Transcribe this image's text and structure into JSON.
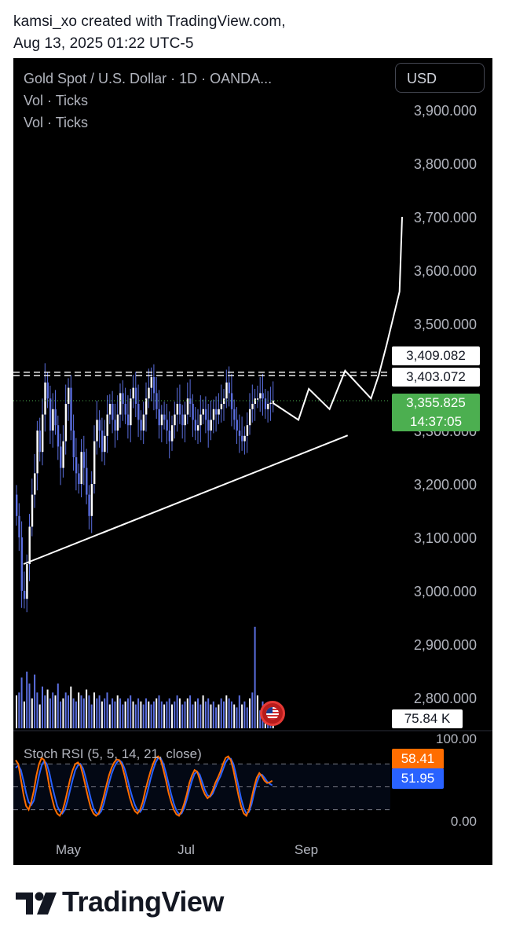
{
  "header": {
    "line1": "kamsi_xo created with TradingView.com,",
    "line2": "Aug 13, 2025 01:22 UTC-5"
  },
  "legend": {
    "symbol": "Gold Spot / U.S. Dollar · 1D · OANDA...",
    "indicator1": "Vol · Ticks",
    "indicator2": "Vol · Ticks"
  },
  "currency_button": "USD",
  "badges": {
    "level1": "3,409.082",
    "level2": "3,403.072",
    "last_price": "3,355.825",
    "countdown": "14:37:05",
    "volume": "75.84 K",
    "stoch_k": "58.41",
    "stoch_d": "51.95"
  },
  "stoch_label": "Stoch RSI (5, 5, 14, 21, close)",
  "footer": {
    "brand": "TradingView"
  },
  "colors": {
    "background": "#000000",
    "candle": "#5b6fe0",
    "price_badge": "#4caf50",
    "stoch_k": "#ff6d00",
    "stoch_d": "#2962ff",
    "drawing": "#ffffff"
  },
  "chart_data": {
    "type": "candlestick",
    "symbol": "XAUUSD",
    "timeframe": "1D",
    "price_axis": {
      "ticks": [
        "3,900.000",
        "3,800.000",
        "3,700.000",
        "3,600.000",
        "3,500.000",
        "3,200.000",
        "3,100.000",
        "3,000.000",
        "2,900.000",
        "2,800.000"
      ],
      "tick_values": [
        3900,
        3800,
        3700,
        3600,
        3500,
        3200,
        3100,
        3000,
        2900,
        2800
      ],
      "partially_hidden_tick": "3,300.000",
      "partially_hidden_tick_value": 3300
    },
    "time_axis": {
      "ticks": [
        "May",
        "Jul",
        "Sep"
      ]
    },
    "lines": {
      "level1": 3409.082,
      "level2": 3403.072,
      "last_price": 3355.825
    },
    "trendline": [
      [
        0,
        3050
      ],
      [
        119,
        3335
      ]
    ],
    "projection_path": [
      [
        90,
        3352
      ],
      [
        100,
        3320
      ],
      [
        104,
        3378
      ],
      [
        112,
        3340
      ],
      [
        118,
        3412
      ],
      [
        128,
        3360
      ],
      [
        131,
        3404
      ],
      [
        134,
        3460
      ],
      [
        139,
        3560
      ],
      [
        140,
        3700
      ]
    ],
    "closes": [
      3140,
      3100,
      3000,
      2985,
      3050,
      3120,
      3180,
      3220,
      3300,
      3260,
      3330,
      3390,
      3360,
      3300,
      3340,
      3310,
      3270,
      3230,
      3280,
      3350,
      3380,
      3300,
      3250,
      3220,
      3200,
      3260,
      3230,
      3180,
      3140,
      3200,
      3280,
      3320,
      3300,
      3260,
      3290,
      3330,
      3350,
      3320,
      3300,
      3330,
      3370,
      3350,
      3330,
      3310,
      3360,
      3380,
      3350,
      3320,
      3300,
      3330,
      3360,
      3380,
      3400,
      3370,
      3340,
      3310,
      3330,
      3320,
      3300,
      3280,
      3310,
      3330,
      3350,
      3330,
      3310,
      3330,
      3360,
      3350,
      3320,
      3300,
      3310,
      3330,
      3340,
      3320,
      3300,
      3320,
      3340,
      3330,
      3340,
      3350,
      3360,
      3390,
      3370,
      3340,
      3320,
      3300,
      3290,
      3280,
      3290,
      3310,
      3340,
      3350,
      3360,
      3360,
      3370,
      3360,
      3340,
      3350,
      3352,
      3356
    ],
    "volume": {
      "last": "75.84 K",
      "bars": [
        0.55,
        0.6,
        0.85,
        0.45,
        0.95,
        0.75,
        0.5,
        0.9,
        0.6,
        0.4,
        0.7,
        0.55,
        0.65,
        0.5,
        0.6,
        0.55,
        0.75,
        0.45,
        0.5,
        0.6,
        0.55,
        0.7,
        0.5,
        0.45,
        0.6,
        0.55,
        0.5,
        0.65,
        0.55,
        0.4,
        0.6,
        0.5,
        0.55,
        0.45,
        0.5,
        0.6,
        0.4,
        0.5,
        0.45,
        0.55,
        0.5,
        0.4,
        0.45,
        0.5,
        0.55,
        0.45,
        0.4,
        0.5,
        0.45,
        0.4,
        0.5,
        0.45,
        0.4,
        0.45,
        0.5,
        0.55,
        0.45,
        0.4,
        0.45,
        0.5,
        0.4,
        0.45,
        0.55,
        0.5,
        0.4,
        0.45,
        0.5,
        0.55,
        0.4,
        0.45,
        0.5,
        0.4,
        0.55,
        0.45,
        0.5,
        0.4,
        0.45,
        0.35,
        0.4,
        0.5,
        0.45,
        0.55,
        0.5,
        0.45,
        0.4,
        0.35,
        0.55,
        0.4,
        0.45,
        0.35,
        0.5,
        0.6,
        1.7,
        0.55,
        0.3,
        0.45,
        0.25,
        0.2,
        0.15,
        0.1
      ]
    },
    "stoch_rsi": {
      "params": "5, 5, 14, 21, close",
      "axis_ticks": [
        "100.00",
        "0.00"
      ],
      "bands": [
        80,
        50,
        20
      ],
      "k_last": 58.41,
      "d_last": 51.95,
      "k": [
        85,
        80,
        60,
        40,
        25,
        20,
        30,
        45,
        65,
        80,
        88,
        85,
        70,
        50,
        35,
        22,
        15,
        12,
        18,
        30,
        45,
        60,
        72,
        80,
        82,
        78,
        65,
        50,
        35,
        22,
        15,
        12,
        15,
        25,
        38,
        52,
        65,
        75,
        82,
        86,
        85,
        78,
        65,
        50,
        36,
        25,
        18,
        15,
        20,
        30,
        45,
        58,
        70,
        80,
        88,
        90,
        85,
        72,
        58,
        42,
        30,
        20,
        14,
        12,
        18,
        28,
        40,
        55,
        65,
        72,
        70,
        60,
        48,
        40,
        35,
        38,
        45,
        55,
        62,
        70,
        80,
        88,
        90,
        85,
        72,
        55,
        38,
        24,
        15,
        12,
        20,
        35,
        50,
        62,
        68,
        64,
        58,
        55,
        56,
        58
      ],
      "d": [
        75,
        78,
        72,
        58,
        42,
        30,
        26,
        32,
        48,
        65,
        78,
        84,
        80,
        68,
        52,
        38,
        25,
        18,
        15,
        20,
        32,
        46,
        60,
        72,
        78,
        80,
        74,
        62,
        48,
        34,
        22,
        16,
        14,
        18,
        28,
        42,
        55,
        67,
        76,
        82,
        85,
        82,
        74,
        62,
        48,
        36,
        26,
        19,
        17,
        22,
        33,
        46,
        60,
        72,
        82,
        88,
        87,
        80,
        68,
        54,
        40,
        28,
        19,
        14,
        15,
        22,
        33,
        46,
        58,
        67,
        70,
        66,
        56,
        46,
        39,
        37,
        41,
        49,
        57,
        64,
        73,
        82,
        87,
        87,
        80,
        66,
        50,
        34,
        22,
        15,
        17,
        27,
        42,
        55,
        64,
        66,
        62,
        57,
        54,
        52
      ]
    }
  }
}
